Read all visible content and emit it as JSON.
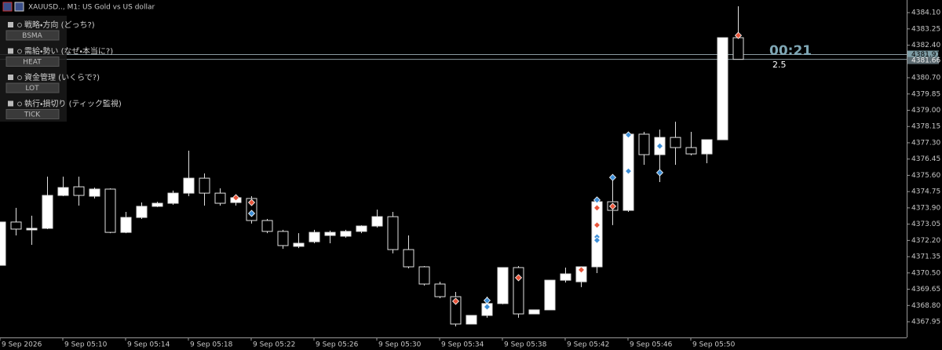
{
  "header": {
    "title": "XAUUSD.., M1:  US Gold vs US dollar"
  },
  "panel": [
    {
      "label": "戦略・方向 (どっち?)",
      "button": "BSMA"
    },
    {
      "label": "需給・勢い (なぜ・本当に?)",
      "button": "HEAT"
    },
    {
      "label": "資金管理 (いくらで?)",
      "button": "LOT"
    },
    {
      "label": "執行・損切り (ティック監視)",
      "button": "TICK"
    }
  ],
  "timer": {
    "countdown": "00:21",
    "spread": "2.5"
  },
  "chart_data": {
    "type": "candlestick",
    "categories": [
      "9 Sep 2026",
      null,
      null,
      null,
      "9 Sep 05:10",
      null,
      null,
      null,
      "9 Sep 05:14",
      null,
      null,
      null,
      "9 Sep 05:18",
      null,
      null,
      null,
      "9 Sep 05:22",
      null,
      null,
      null,
      "9 Sep 05:26",
      null,
      null,
      null,
      "9 Sep 05:30",
      null,
      null,
      null,
      "9 Sep 05:34",
      null,
      null,
      null,
      "9 Sep 05:38",
      null,
      null,
      null,
      "9 Sep 05:42",
      null,
      null,
      null,
      "9 Sep 05:46",
      null,
      null,
      null,
      "9 Sep 05:50",
      null,
      null,
      null
    ],
    "open": [
      4370.9,
      4373.16,
      4372.75,
      4372.83,
      4374.55,
      4375.0,
      4374.51,
      4374.88,
      4372.62,
      4373.4,
      4373.98,
      4374.14,
      4374.67,
      4375.45,
      4374.67,
      4374.18,
      4374.39,
      4373.24,
      4372.67,
      4371.89,
      4372.13,
      4372.46,
      4372.42,
      4372.67,
      4372.95,
      4373.44,
      4371.72,
      4370.82,
      4369.92,
      4369.26,
      4367.83,
      4368.28,
      4368.9,
      4370.78,
      4368.36,
      4368.57,
      4370.12,
      4370.04,
      4370.82,
      4374.22,
      4373.77,
      4377.75,
      4376.68,
      4377.58,
      4377.05,
      4376.72,
      4377.46,
      4382.79
    ],
    "high": [
      4373.16,
      4373.9,
      4373.49,
      4375.53,
      4375.53,
      4375.53,
      4374.96,
      4374.92,
      4373.69,
      4374.18,
      4374.22,
      4374.8,
      4376.89,
      4375.7,
      4374.92,
      4374.59,
      4374.51,
      4373.32,
      4372.75,
      4372.58,
      4372.75,
      4372.71,
      4372.75,
      4372.99,
      4373.81,
      4373.69,
      4372.46,
      4370.86,
      4370.04,
      4369.51,
      4368.28,
      4369.26,
      4370.78,
      4370.86,
      4368.57,
      4370.12,
      4370.78,
      4370.82,
      4374.22,
      4375.33,
      4377.87,
      4377.87,
      4377.99,
      4378.4,
      4377.87,
      4377.46,
      4382.79,
      4384.43
    ],
    "low": [
      4370.9,
      4372.46,
      4371.97,
      4372.79,
      4374.51,
      4374.02,
      4374.39,
      4372.58,
      4372.58,
      4373.32,
      4373.94,
      4374.06,
      4374.51,
      4374.02,
      4374.02,
      4374.02,
      4373.08,
      4372.58,
      4371.76,
      4371.8,
      4372.05,
      4372.05,
      4372.34,
      4372.58,
      4372.87,
      4371.52,
      4370.74,
      4369.84,
      4369.18,
      4367.71,
      4367.83,
      4368.16,
      4368.86,
      4368.16,
      4368.36,
      4368.57,
      4370.0,
      4369.76,
      4370.49,
      4373.0,
      4373.69,
      4376.15,
      4375.25,
      4376.15,
      4376.64,
      4376.23,
      4377.46,
      4381.66
    ],
    "close": [
      4373.16,
      4372.79,
      4372.83,
      4374.55,
      4374.96,
      4374.55,
      4374.88,
      4372.62,
      4373.4,
      4373.98,
      4374.14,
      4374.67,
      4375.45,
      4374.67,
      4374.14,
      4374.43,
      4373.24,
      4372.67,
      4371.93,
      4372.05,
      4372.62,
      4372.62,
      4372.67,
      4372.95,
      4373.44,
      4371.72,
      4370.82,
      4369.92,
      4369.26,
      4367.83,
      4368.28,
      4368.9,
      4370.78,
      4368.36,
      4368.57,
      4370.12,
      4370.45,
      4370.82,
      4374.22,
      4373.77,
      4377.75,
      4376.68,
      4377.58,
      4377.05,
      4376.72,
      4377.46,
      4382.79,
      4381.66
    ],
    "up_color": "#ffffff",
    "down_color": "#000000",
    "outline_color": "#e0e0e0",
    "ylim": [
      4367.13,
      4384.76
    ],
    "yticks": [
      4367.95,
      {
        "value": 4368.8,
        "label": "4368.80"
      },
      4369.65,
      {
        "value": 4370.5,
        "label": "4370.50"
      },
      4371.35,
      {
        "value": 4372.2,
        "label": "4372.20"
      },
      4373.05,
      {
        "value": 4373.9,
        "label": "4373.90"
      },
      4374.75,
      {
        "value": 4375.6,
        "label": "4375.60"
      },
      4376.45,
      {
        "value": 4377.3,
        "label": "4377.30"
      },
      4378.15,
      {
        "value": 4379.0,
        "label": "4379.00"
      },
      4379.85,
      {
        "value": 4380.7,
        "label": "4380.70"
      },
      {
        "value": 4382.4,
        "label": "4382.40"
      },
      4383.25,
      {
        "value": 4384.1,
        "label": "4384.10"
      }
    ],
    "ask": 4381.91,
    "bid": 4381.66,
    "markers": [
      {
        "x": 15,
        "y": 4374.43,
        "color": "#e8553a"
      },
      {
        "x": 16,
        "y": 4374.18,
        "color": "#e8553a"
      },
      {
        "x": 16,
        "y": 4373.61,
        "color": "#3d8fd8"
      },
      {
        "x": 29,
        "y": 4369.02,
        "color": "#e8553a"
      },
      {
        "x": 31,
        "y": 4369.06,
        "color": "#3d8fd8"
      },
      {
        "x": 31,
        "y": 4368.73,
        "color": "#3d8fd8"
      },
      {
        "x": 33,
        "y": 4370.25,
        "color": "#e8553a"
      },
      {
        "x": 37,
        "y": 4370.66,
        "color": "#e8553a"
      },
      {
        "x": 38,
        "y": 4373.9,
        "color": "#e8553a"
      },
      {
        "x": 38,
        "y": 4373.0,
        "color": "#e8553a"
      },
      {
        "x": 38,
        "y": 4374.31,
        "color": "#3d8fd8"
      },
      {
        "x": 38,
        "y": 4372.38,
        "color": "#3d8fd8"
      },
      {
        "x": 38,
        "y": 4372.21,
        "color": "#3d8fd8"
      },
      {
        "x": 39,
        "y": 4373.98,
        "color": "#e8553a"
      },
      {
        "x": 39,
        "y": 4375.49,
        "color": "#3d8fd8"
      },
      {
        "x": 40,
        "y": 4377.71,
        "color": "#3d8fd8"
      },
      {
        "x": 40,
        "y": 4375.82,
        "color": "#3d8fd8"
      },
      {
        "x": 42,
        "y": 4377.13,
        "color": "#3d8fd8"
      },
      {
        "x": 42,
        "y": 4375.74,
        "color": "#3d8fd8"
      },
      {
        "x": 47,
        "y": 4382.91,
        "color": "#e8553a"
      }
    ]
  }
}
